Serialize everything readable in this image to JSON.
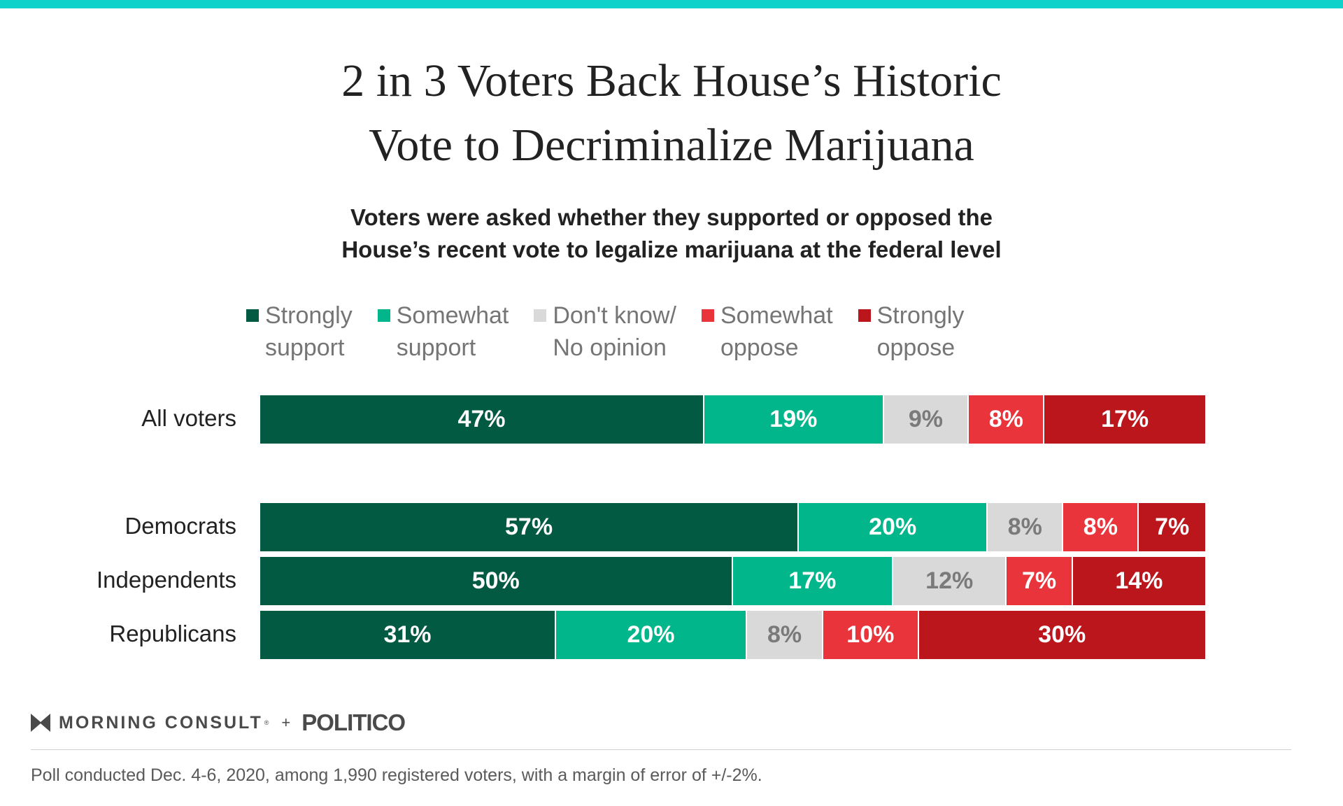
{
  "colors": {
    "top_rule": "#0fd3cb",
    "strongly_support": "#035a43",
    "somewhat_support": "#00b68a",
    "dont_know": "#d9d9d9",
    "somewhat_oppose": "#e9343b",
    "strongly_oppose": "#bc161d",
    "label_light": "#ffffff",
    "label_on_gray": "#7a7a7a"
  },
  "icons": {
    "brand_logo": "morning-consult-logo-icon"
  },
  "branding": {
    "morning_consult": "MORNING CONSULT",
    "trademark": "®",
    "plus": "+",
    "politico": "POLITICO"
  },
  "footnote": "Poll conducted Dec. 4-6, 2020, among 1,990 registered voters, with a margin of error of +/-2%.",
  "chart_data": {
    "type": "bar",
    "orientation": "horizontal",
    "stacked": true,
    "title_lines": [
      "2 in 3 Voters Back House’s Historic",
      "Vote to Decriminalize Marijuana"
    ],
    "subtitle_lines": [
      "Voters were asked whether they supported or opposed the",
      "House’s recent vote to legalize marijuana at the federal level"
    ],
    "legend_position": "top",
    "categories": [
      "All voters",
      "Democrats",
      "Independents",
      "Republicans"
    ],
    "series": [
      {
        "name": "Strongly support",
        "legend_lines": [
          "Strongly",
          "support"
        ],
        "color": "#035a43",
        "values": [
          47,
          57,
          50,
          31
        ]
      },
      {
        "name": "Somewhat support",
        "legend_lines": [
          "Somewhat",
          "support"
        ],
        "color": "#00b68a",
        "values": [
          19,
          20,
          17,
          20
        ]
      },
      {
        "name": "Don't know/ No opinion",
        "legend_lines": [
          "Don't know/",
          "No opinion"
        ],
        "color": "#d9d9d9",
        "values": [
          9,
          8,
          12,
          8
        ]
      },
      {
        "name": "Somewhat oppose",
        "legend_lines": [
          "Somewhat",
          "oppose"
        ],
        "color": "#e9343b",
        "values": [
          8,
          8,
          7,
          10
        ]
      },
      {
        "name": "Strongly oppose",
        "legend_lines": [
          "Strongly",
          "oppose"
        ],
        "color": "#bc161d",
        "values": [
          17,
          7,
          14,
          30
        ]
      }
    ],
    "value_suffix": "%",
    "xlim": [
      0,
      100
    ],
    "grid": false
  }
}
